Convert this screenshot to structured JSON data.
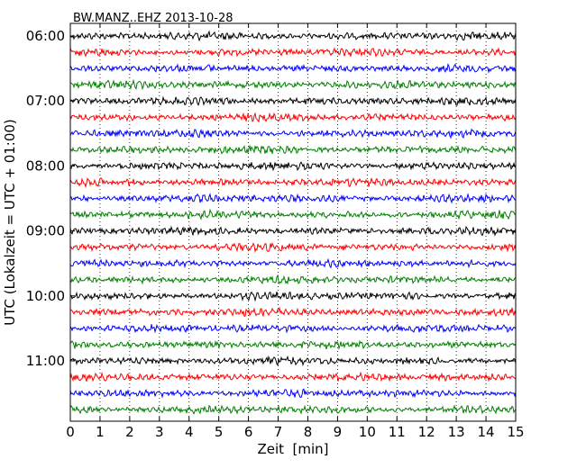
{
  "chart_data": {
    "type": "line",
    "title": "BW.MANZ..EHZ 2013-10-28",
    "xlabel": "Zeit  [min]",
    "ylabel": "UTC (Lokalzeit = UTC + 01:00)",
    "xlim": [
      0,
      15
    ],
    "x_ticks": [
      0,
      1,
      2,
      3,
      4,
      5,
      6,
      7,
      8,
      9,
      10,
      11,
      12,
      13,
      14,
      15
    ],
    "y_ticks": [
      "06:00",
      "07:00",
      "08:00",
      "09:00",
      "10:00",
      "11:00"
    ],
    "grid": "vertical dotted lines at each minute",
    "trace_interval_minutes": 15,
    "trace_start": "06:00",
    "trace_count": 24,
    "trace_colors": [
      "#000000",
      "#ff0000",
      "#0000ff",
      "#008000"
    ]
  }
}
